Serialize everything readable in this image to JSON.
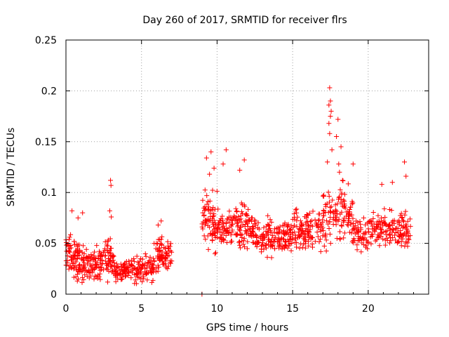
{
  "chart_data": {
    "type": "scatter",
    "title": "Day 260 of 2017, SRMTID for receiver flrs",
    "xlabel": "GPS time / hours",
    "ylabel": "SRMTID / TECUs",
    "xlim": [
      0,
      24
    ],
    "ylim": [
      0,
      0.25
    ],
    "x_ticks": [
      0,
      5,
      10,
      15,
      20
    ],
    "y_ticks": [
      0,
      0.05,
      0.1,
      0.15,
      0.2,
      0.25
    ],
    "x_tick_labels": [
      "0",
      "5",
      "10",
      "15",
      "20"
    ],
    "y_tick_labels": [
      "0",
      "0.05",
      "0.1",
      "0.15",
      "0.2",
      "0.25"
    ],
    "grid": true,
    "marker": "plus",
    "color": "#ff0000",
    "segments": [
      {
        "x_start": 0.0,
        "x_end": 1.0,
        "y_center": 0.036,
        "y_spread": 0.018,
        "count": 90
      },
      {
        "x_start": 1.0,
        "x_end": 2.5,
        "y_center": 0.03,
        "y_spread": 0.014,
        "count": 100
      },
      {
        "x_start": 2.5,
        "x_end": 3.2,
        "y_center": 0.034,
        "y_spread": 0.018,
        "count": 50
      },
      {
        "x_start": 3.2,
        "x_end": 5.0,
        "y_center": 0.024,
        "y_spread": 0.01,
        "count": 110
      },
      {
        "x_start": 5.0,
        "x_end": 5.8,
        "y_center": 0.025,
        "y_spread": 0.012,
        "count": 50
      },
      {
        "x_start": 5.8,
        "x_end": 7.0,
        "y_center": 0.038,
        "y_spread": 0.014,
        "count": 80
      },
      {
        "x_start": 9.0,
        "x_end": 10.0,
        "y_center": 0.072,
        "y_spread": 0.026,
        "count": 70
      },
      {
        "x_start": 10.0,
        "x_end": 12.5,
        "y_center": 0.066,
        "y_spread": 0.018,
        "count": 160
      },
      {
        "x_start": 12.5,
        "x_end": 15.0,
        "y_center": 0.056,
        "y_spread": 0.016,
        "count": 150
      },
      {
        "x_start": 15.0,
        "x_end": 17.0,
        "y_center": 0.064,
        "y_spread": 0.018,
        "count": 120
      },
      {
        "x_start": 17.0,
        "x_end": 19.0,
        "y_center": 0.078,
        "y_spread": 0.026,
        "count": 120
      },
      {
        "x_start": 19.0,
        "x_end": 22.8,
        "y_center": 0.062,
        "y_spread": 0.018,
        "count": 210
      }
    ],
    "highlights": [
      {
        "x": 0.4,
        "y": 0.082
      },
      {
        "x": 0.8,
        "y": 0.075
      },
      {
        "x": 1.1,
        "y": 0.08
      },
      {
        "x": 2.95,
        "y": 0.112
      },
      {
        "x": 2.98,
        "y": 0.107
      },
      {
        "x": 2.9,
        "y": 0.082
      },
      {
        "x": 3.0,
        "y": 0.076
      },
      {
        "x": 6.3,
        "y": 0.072
      },
      {
        "x": 6.1,
        "y": 0.068
      },
      {
        "x": 9.0,
        "y": 0.0
      },
      {
        "x": 9.6,
        "y": 0.14
      },
      {
        "x": 9.3,
        "y": 0.134
      },
      {
        "x": 9.8,
        "y": 0.124
      },
      {
        "x": 9.5,
        "y": 0.118
      },
      {
        "x": 10.6,
        "y": 0.142
      },
      {
        "x": 10.4,
        "y": 0.128
      },
      {
        "x": 11.8,
        "y": 0.132
      },
      {
        "x": 11.5,
        "y": 0.122
      },
      {
        "x": 17.45,
        "y": 0.203
      },
      {
        "x": 17.5,
        "y": 0.19
      },
      {
        "x": 17.4,
        "y": 0.186
      },
      {
        "x": 17.55,
        "y": 0.18
      },
      {
        "x": 17.5,
        "y": 0.175
      },
      {
        "x": 17.4,
        "y": 0.168
      },
      {
        "x": 17.45,
        "y": 0.158
      },
      {
        "x": 17.6,
        "y": 0.142
      },
      {
        "x": 17.3,
        "y": 0.13
      },
      {
        "x": 18.0,
        "y": 0.172
      },
      {
        "x": 17.9,
        "y": 0.155
      },
      {
        "x": 18.2,
        "y": 0.145
      },
      {
        "x": 18.05,
        "y": 0.128
      },
      {
        "x": 18.1,
        "y": 0.12
      },
      {
        "x": 18.3,
        "y": 0.112
      },
      {
        "x": 19.0,
        "y": 0.128
      },
      {
        "x": 22.4,
        "y": 0.13
      },
      {
        "x": 22.5,
        "y": 0.116
      },
      {
        "x": 21.6,
        "y": 0.11
      },
      {
        "x": 20.9,
        "y": 0.108
      }
    ]
  }
}
